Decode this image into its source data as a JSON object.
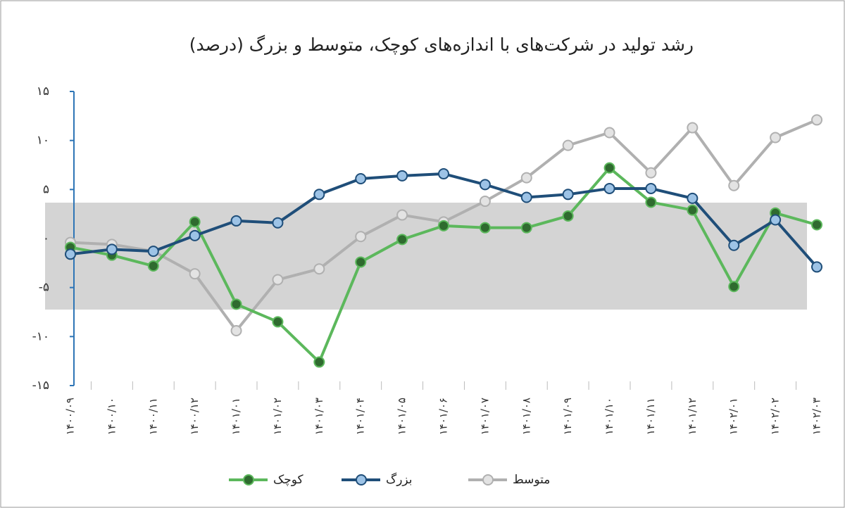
{
  "chart_data": {
    "type": "line",
    "title": "رشد تولید در شرکت‌های با اندازه‌های کوچک، متوسط و بزرگ (درصد)",
    "categories": [
      "۱۴۰۰/۰۹",
      "۱۴۰۰/۱۰",
      "۱۴۰۰/۱۱",
      "۱۴۰۰/۱۲",
      "۱۴۰۱/۰۱",
      "۱۴۰۱/۰۲",
      "۱۴۰۱/۰۳",
      "۱۴۰۱/۰۴",
      "۱۴۰۱/۰۵",
      "۱۴۰۱/۰۶",
      "۱۴۰۱/۰۷",
      "۱۴۰۱/۰۸",
      "۱۴۰۱/۰۹",
      "۱۴۰۱/۱۰",
      "۱۴۰۱/۱۱",
      "۱۴۰۱/۱۲",
      "۱۴۰۲/۰۱",
      "۱۴۰۲/۰۲",
      "۱۴۰۲/۰۳"
    ],
    "series": [
      {
        "name": "کوچک",
        "color": "#5cb85c",
        "marker": "#2f6b2f",
        "values": [
          -0.9,
          -1.7,
          -2.8,
          1.7,
          -6.7,
          -8.5,
          -12.6,
          -2.4,
          -0.1,
          1.3,
          1.1,
          1.1,
          2.3,
          7.2,
          3.7,
          2.9,
          -4.9,
          2.6,
          1.4
        ]
      },
      {
        "name": "بزرگ",
        "color": "#1f4e79",
        "marker": "#9dc3e6",
        "values": [
          -1.6,
          -1.1,
          -1.3,
          0.3,
          1.8,
          1.6,
          4.5,
          6.1,
          6.4,
          6.6,
          5.5,
          4.2,
          4.5,
          5.1,
          5.1,
          4.1,
          -0.7,
          1.9,
          -2.9
        ]
      },
      {
        "name": "متوسط",
        "color": "#b0b0b0",
        "marker": "#e3e3e3",
        "values": [
          -0.4,
          -0.6,
          -1.3,
          -3.6,
          -9.4,
          -4.2,
          -3.1,
          0.2,
          2.4,
          1.7,
          3.8,
          6.2,
          9.5,
          10.8,
          6.7,
          11.3,
          5.4,
          10.3,
          12.1
        ]
      }
    ],
    "ylim": [
      -15,
      15
    ],
    "yticks": [
      {
        "value": -15,
        "label": "-۱۵"
      },
      {
        "value": -10,
        "label": "-۱۰"
      },
      {
        "value": -5,
        "label": "-۵"
      },
      {
        "value": 0,
        "label": "۰"
      },
      {
        "value": 5,
        "label": "۵"
      },
      {
        "value": 10,
        "label": "۱۰"
      },
      {
        "value": 15,
        "label": "۱۵"
      }
    ],
    "axis_color": "#2e75b6"
  }
}
